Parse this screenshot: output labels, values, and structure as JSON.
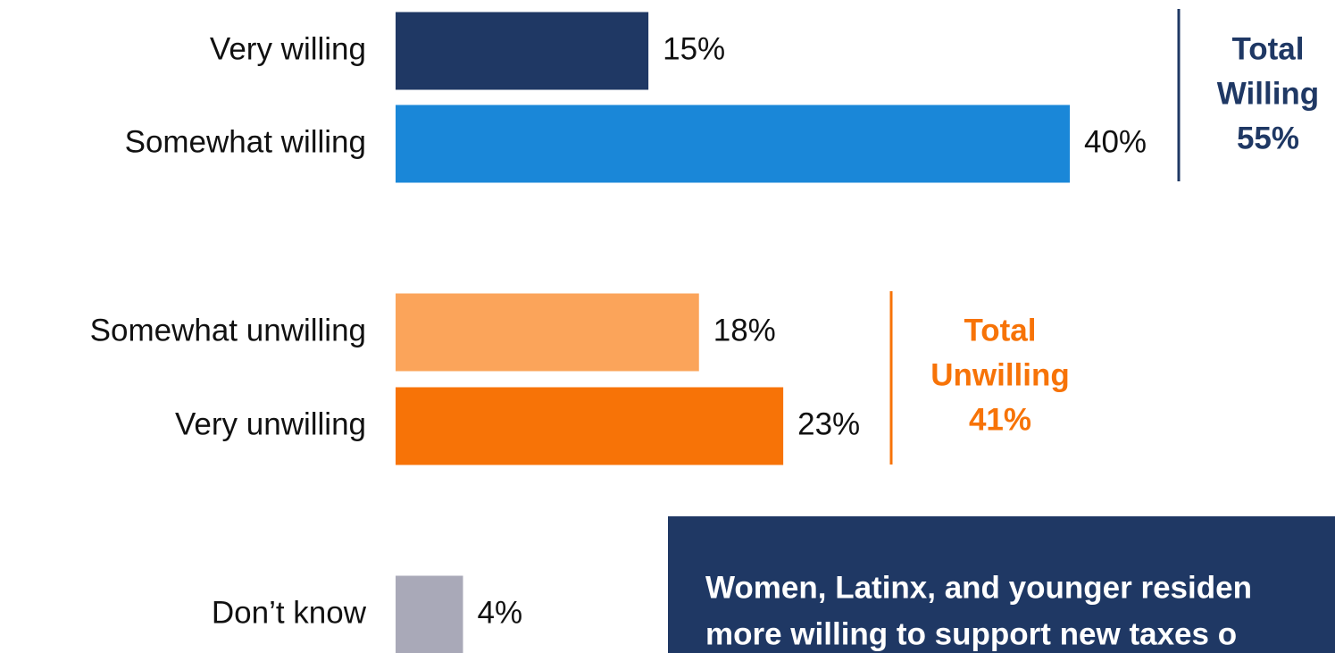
{
  "chart_data": {
    "type": "bar",
    "orientation": "horizontal",
    "categories": [
      "Very willing",
      "Somewhat willing",
      "Somewhat unwilling",
      "Very unwilling",
      "Don’t know"
    ],
    "values": [
      15,
      40,
      18,
      23,
      4
    ],
    "value_labels": [
      "15%",
      "40%",
      "18%",
      "23%",
      "4%"
    ],
    "colors": [
      "#1f3864",
      "#1a87d8",
      "#fba45a",
      "#f77307",
      "#a9a9b8"
    ],
    "annotations": [
      {
        "text": [
          "Total",
          "Willing",
          "55%"
        ],
        "color": "#1f3864"
      },
      {
        "text": [
          "Total",
          "Unwilling",
          "41%"
        ],
        "color": "#f77307"
      }
    ],
    "callout": {
      "text": [
        "Women, Latinx, and younger residen",
        "more willing to support new taxes o"
      ],
      "color": "#1f3864"
    }
  }
}
